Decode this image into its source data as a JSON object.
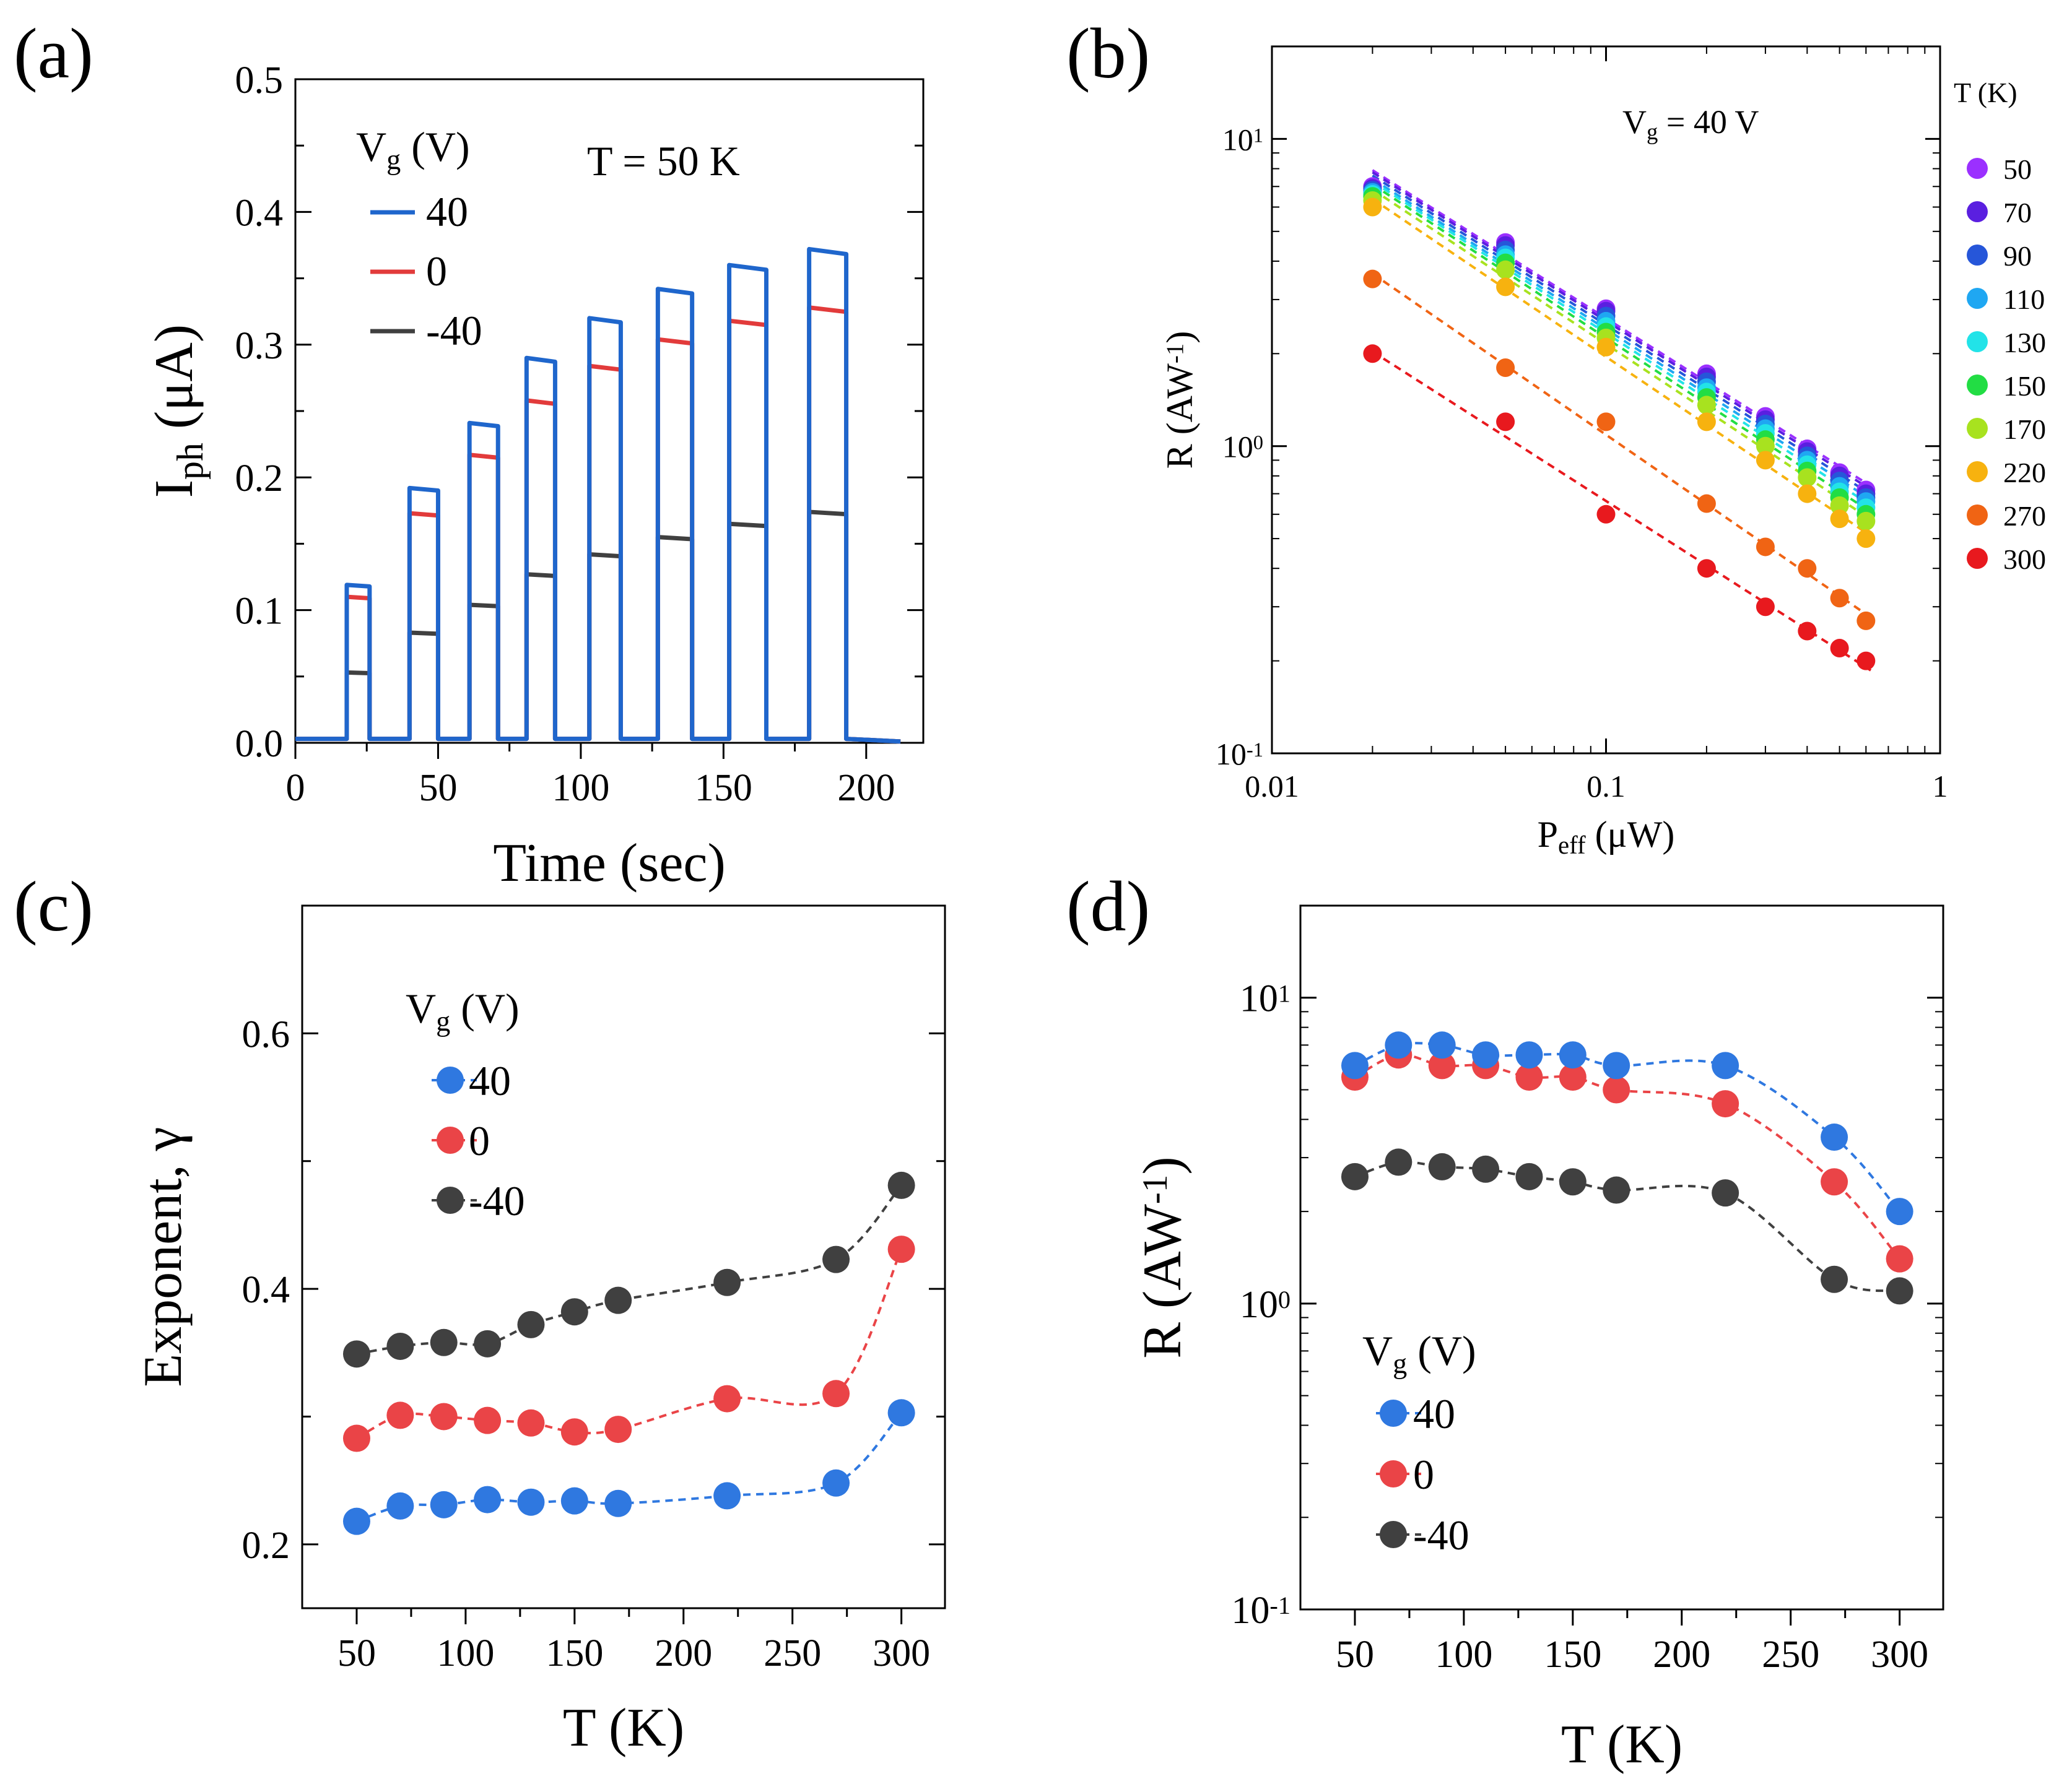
{
  "chart_data": [
    {
      "panel": "(a)",
      "type": "line",
      "xlabel": "Time (sec)",
      "ylabel_main": "I",
      "ylabel_sub": "ph",
      "ylabel_unit": " (μA)",
      "xlim": [
        0,
        220
      ],
      "ylim": [
        0,
        0.5
      ],
      "xticks": [
        0,
        50,
        100,
        150,
        200
      ],
      "xtick_labels": [
        "0",
        "50",
        "100",
        "150",
        "200"
      ],
      "yticks": [
        0.0,
        0.1,
        0.2,
        0.3,
        0.4,
        0.5
      ],
      "ytick_labels": [
        "0.0",
        "0.1",
        "0.2",
        "0.3",
        "0.4",
        "0.5"
      ],
      "annotation": "T = 50 K",
      "legend_title_main": "V",
      "legend_title_sub": "g",
      "legend_title_unit": " (V)",
      "pulses": [
        {
          "on": 18,
          "off": 26
        },
        {
          "on": 40,
          "off": 50
        },
        {
          "on": 61,
          "off": 71
        },
        {
          "on": 81,
          "off": 91
        },
        {
          "on": 103,
          "off": 114
        },
        {
          "on": 127,
          "off": 139
        },
        {
          "on": 152,
          "off": 165
        },
        {
          "on": 180,
          "off": 193
        }
      ],
      "series": [
        {
          "name": "40",
          "color": "#1f66cc",
          "values": [
            0.119,
            0.192,
            0.241,
            0.29,
            0.32,
            0.342,
            0.36,
            0.372
          ]
        },
        {
          "name": "0",
          "color": "#e23b3b",
          "values": [
            0.11,
            0.173,
            0.217,
            0.258,
            0.284,
            0.304,
            0.318,
            0.328
          ]
        },
        {
          "name": "-40",
          "color": "#404040",
          "values": [
            0.053,
            0.083,
            0.104,
            0.127,
            0.142,
            0.155,
            0.165,
            0.174
          ]
        }
      ]
    },
    {
      "panel": "(b)",
      "type": "scatter",
      "xscale": "log",
      "yscale": "log",
      "xlabel_main": "P",
      "xlabel_sub": "eff",
      "xlabel_unit": " (μW)",
      "ylabel": "R (AW",
      "ylabel_sup": "-1",
      "ylabel_end": ")",
      "xlim": [
        0.01,
        1
      ],
      "ylim": [
        0.1,
        20
      ],
      "xtick_labels": [
        "0.01",
        "0.1",
        "1"
      ],
      "ytick_base": "10",
      "ytick_exponents": [
        "-1",
        "0",
        "1"
      ],
      "annotation_main": "V",
      "annotation_sub": "g",
      "annotation_end": " = 40 V",
      "legend_title": "T (K)",
      "x": [
        0.02,
        0.05,
        0.1,
        0.2,
        0.3,
        0.4,
        0.5,
        0.6
      ],
      "series": [
        {
          "name": "50",
          "color": "#9b30ff",
          "values": [
            7.0,
            4.6,
            2.8,
            1.72,
            1.25,
            0.98,
            0.82,
            0.72
          ]
        },
        {
          "name": "70",
          "color": "#5a1fe0",
          "values": [
            6.9,
            4.5,
            2.75,
            1.68,
            1.22,
            0.96,
            0.8,
            0.7
          ]
        },
        {
          "name": "90",
          "color": "#2656d9",
          "values": [
            6.8,
            4.35,
            2.65,
            1.62,
            1.18,
            0.93,
            0.77,
            0.68
          ]
        },
        {
          "name": "110",
          "color": "#1fa7f2",
          "values": [
            6.7,
            4.2,
            2.55,
            1.55,
            1.14,
            0.9,
            0.74,
            0.66
          ]
        },
        {
          "name": "130",
          "color": "#22e3e8",
          "values": [
            6.6,
            4.1,
            2.45,
            1.5,
            1.1,
            0.87,
            0.71,
            0.63
          ]
        },
        {
          "name": "150",
          "color": "#22dd44",
          "values": [
            6.5,
            3.95,
            2.35,
            1.44,
            1.05,
            0.83,
            0.68,
            0.6
          ]
        },
        {
          "name": "170",
          "color": "#a8e21f",
          "values": [
            6.3,
            3.75,
            2.25,
            1.36,
            1.0,
            0.79,
            0.64,
            0.57
          ]
        },
        {
          "name": "220",
          "color": "#f7b20f",
          "values": [
            6.0,
            3.3,
            2.1,
            1.2,
            0.9,
            0.7,
            0.58,
            0.5
          ]
        },
        {
          "name": "270",
          "color": "#f06414",
          "values": [
            3.5,
            1.8,
            1.2,
            0.65,
            0.47,
            0.4,
            0.32,
            0.27
          ]
        },
        {
          "name": "300",
          "color": "#e8191e",
          "values": [
            2.0,
            1.2,
            0.6,
            0.4,
            0.3,
            0.25,
            0.22,
            0.2
          ]
        }
      ]
    },
    {
      "panel": "(c)",
      "type": "scatter",
      "xlabel": "T (K)",
      "ylabel": "Exponent, γ",
      "xlim": [
        25,
        320
      ],
      "ylim": [
        0.15,
        0.7
      ],
      "xticks": [
        50,
        100,
        150,
        200,
        250,
        300
      ],
      "xtick_labels": [
        "50",
        "100",
        "150",
        "200",
        "250",
        "300"
      ],
      "yticks": [
        0.2,
        0.4,
        0.6
      ],
      "ytick_labels": [
        "0.2",
        "0.4",
        "0.6"
      ],
      "legend_title_main": "V",
      "legend_title_sub": "g",
      "legend_title_unit": " (V)",
      "x": [
        50,
        70,
        90,
        110,
        130,
        150,
        170,
        220,
        270,
        300
      ],
      "series": [
        {
          "name": "40",
          "color": "#2f78e0",
          "values": [
            0.218,
            0.23,
            0.231,
            0.235,
            0.233,
            0.234,
            0.232,
            0.238,
            0.248,
            0.303
          ]
        },
        {
          "name": "0",
          "color": "#ea4447",
          "values": [
            0.283,
            0.301,
            0.3,
            0.297,
            0.295,
            0.288,
            0.29,
            0.314,
            0.318,
            0.431
          ]
        },
        {
          "name": "-40",
          "color": "#404040",
          "values": [
            0.349,
            0.355,
            0.358,
            0.357,
            0.372,
            0.382,
            0.391,
            0.405,
            0.423,
            0.481
          ]
        }
      ]
    },
    {
      "panel": "(d)",
      "type": "scatter",
      "yscale": "log",
      "xlabel": "T (K)",
      "ylabel": "R (AW",
      "ylabel_sup": "-1",
      "ylabel_end": ")",
      "xlim": [
        25,
        320
      ],
      "ylim": [
        0.1,
        20
      ],
      "xticks": [
        50,
        100,
        150,
        200,
        250,
        300
      ],
      "xtick_labels": [
        "50",
        "100",
        "150",
        "200",
        "250",
        "300"
      ],
      "ytick_base": "10",
      "ytick_exponents": [
        "-1",
        "0",
        "1"
      ],
      "legend_title_main": "V",
      "legend_title_sub": "g",
      "legend_title_unit": " (V)",
      "x": [
        50,
        70,
        90,
        110,
        130,
        150,
        170,
        220,
        270,
        300
      ],
      "series": [
        {
          "name": "40",
          "color": "#2f78e0",
          "values": [
            6.0,
            7.0,
            7.0,
            6.5,
            6.5,
            6.5,
            6.0,
            6.0,
            3.5,
            2.0
          ]
        },
        {
          "name": "0",
          "color": "#ea4447",
          "values": [
            5.5,
            6.5,
            6.0,
            6.0,
            5.5,
            5.5,
            5.0,
            4.5,
            2.5,
            1.4
          ]
        },
        {
          "name": "-40",
          "color": "#404040",
          "values": [
            2.6,
            2.9,
            2.8,
            2.75,
            2.6,
            2.5,
            2.35,
            2.3,
            1.2,
            1.1
          ]
        }
      ]
    }
  ]
}
